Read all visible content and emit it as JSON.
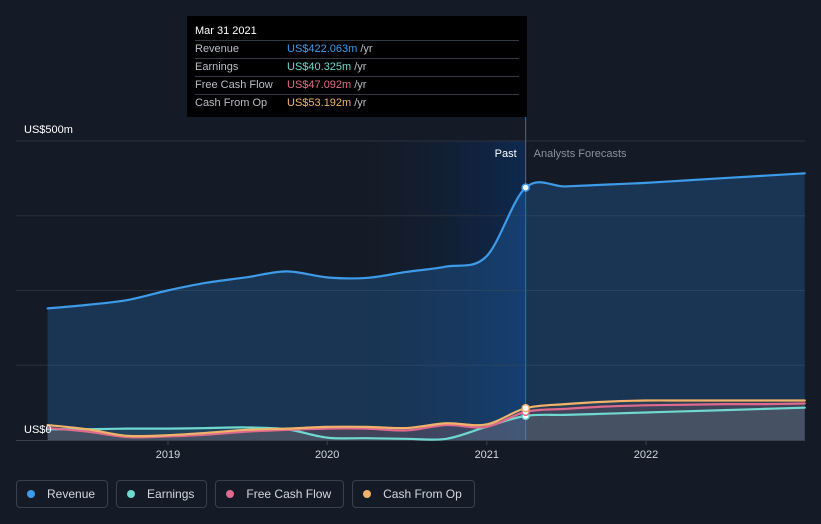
{
  "tooltip": {
    "date": "Mar 31 2021",
    "rows": [
      {
        "label": "Revenue",
        "value": "US$422.063m",
        "unit": "/yr",
        "color": "#3d9be9"
      },
      {
        "label": "Earnings",
        "value": "US$40.325m",
        "unit": "/yr",
        "color": "#6fd8cf"
      },
      {
        "label": "Free Cash Flow",
        "value": "US$47.092m",
        "unit": "/yr",
        "color": "#e06a8e"
      },
      {
        "label": "Cash From Op",
        "value": "US$53.192m",
        "unit": "/yr",
        "color": "#f1b36a"
      }
    ]
  },
  "legend": [
    {
      "label": "Revenue",
      "color": "#3d9be9"
    },
    {
      "label": "Earnings",
      "color": "#6fd8cf"
    },
    {
      "label": "Free Cash Flow",
      "color": "#e06a8e"
    },
    {
      "label": "Cash From Op",
      "color": "#f1b36a"
    }
  ],
  "chart_data": {
    "type": "area",
    "y_axis_labels": [
      "US$500m",
      "US$0"
    ],
    "ylim": [
      0,
      500
    ],
    "x_ticks": [
      "2019",
      "2020",
      "2021",
      "2022"
    ],
    "past_label": "Past",
    "forecast_label": "Analysts Forecasts",
    "highlight_date": "2021-03-31",
    "series": [
      {
        "name": "Revenue",
        "color": "#3d9be9",
        "points": [
          [
            "2018-03-31",
            220
          ],
          [
            "2018-06-30",
            226
          ],
          [
            "2018-09-30",
            234
          ],
          [
            "2018-12-31",
            250
          ],
          [
            "2019-03-31",
            263
          ],
          [
            "2019-06-30",
            272
          ],
          [
            "2019-09-30",
            282
          ],
          [
            "2019-12-31",
            272
          ],
          [
            "2020-03-31",
            271
          ],
          [
            "2020-06-30",
            281
          ],
          [
            "2020-09-30",
            290
          ],
          [
            "2020-12-31",
            307
          ],
          [
            "2021-03-31",
            422.063
          ],
          [
            "2021-06-30",
            424
          ],
          [
            "2021-09-30",
            427
          ],
          [
            "2021-12-31",
            430
          ],
          [
            "2022-03-31",
            434
          ],
          [
            "2022-06-30",
            438
          ],
          [
            "2022-09-30",
            442
          ],
          [
            "2022-12-31",
            446
          ]
        ]
      },
      {
        "name": "Earnings",
        "color": "#6fd8cf",
        "points": [
          [
            "2018-03-31",
            18
          ],
          [
            "2018-06-30",
            18
          ],
          [
            "2018-09-30",
            19
          ],
          [
            "2018-12-31",
            19
          ],
          [
            "2019-03-31",
            20
          ],
          [
            "2019-06-30",
            21
          ],
          [
            "2019-09-30",
            18
          ],
          [
            "2019-12-31",
            4
          ],
          [
            "2020-03-31",
            3
          ],
          [
            "2020-06-30",
            2
          ],
          [
            "2020-09-30",
            2
          ],
          [
            "2020-12-31",
            22
          ],
          [
            "2021-03-31",
            40.325
          ],
          [
            "2021-06-30",
            42
          ],
          [
            "2021-09-30",
            44
          ],
          [
            "2021-12-31",
            46
          ],
          [
            "2022-03-31",
            48
          ],
          [
            "2022-06-30",
            50
          ],
          [
            "2022-09-30",
            52
          ],
          [
            "2022-12-31",
            54
          ]
        ]
      },
      {
        "name": "Free Cash Flow",
        "color": "#e06a8e",
        "points": [
          [
            "2018-03-31",
            20
          ],
          [
            "2018-06-30",
            14
          ],
          [
            "2018-09-30",
            5
          ],
          [
            "2018-12-31",
            6
          ],
          [
            "2019-03-31",
            9
          ],
          [
            "2019-06-30",
            14
          ],
          [
            "2019-09-30",
            17
          ],
          [
            "2019-12-31",
            19
          ],
          [
            "2020-03-31",
            19
          ],
          [
            "2020-06-30",
            16
          ],
          [
            "2020-09-30",
            25
          ],
          [
            "2020-12-31",
            22
          ],
          [
            "2021-03-31",
            47.092
          ],
          [
            "2021-06-30",
            52
          ],
          [
            "2021-09-30",
            56
          ],
          [
            "2021-12-31",
            58
          ],
          [
            "2022-03-31",
            59
          ],
          [
            "2022-06-30",
            60
          ],
          [
            "2022-09-30",
            60
          ],
          [
            "2022-12-31",
            61
          ]
        ]
      },
      {
        "name": "Cash From Op",
        "color": "#f1b36a",
        "points": [
          [
            "2018-03-31",
            25
          ],
          [
            "2018-06-30",
            18
          ],
          [
            "2018-09-30",
            7
          ],
          [
            "2018-12-31",
            8
          ],
          [
            "2019-03-31",
            12
          ],
          [
            "2019-06-30",
            17
          ],
          [
            "2019-09-30",
            19
          ],
          [
            "2019-12-31",
            22
          ],
          [
            "2020-03-31",
            22
          ],
          [
            "2020-06-30",
            20
          ],
          [
            "2020-09-30",
            28
          ],
          [
            "2020-12-31",
            26
          ],
          [
            "2021-03-31",
            53.192
          ],
          [
            "2021-06-30",
            60
          ],
          [
            "2021-09-30",
            64
          ],
          [
            "2021-12-31",
            66
          ],
          [
            "2022-03-31",
            66
          ],
          [
            "2022-06-30",
            66
          ],
          [
            "2022-09-30",
            66
          ],
          [
            "2022-12-31",
            66
          ]
        ]
      }
    ]
  }
}
